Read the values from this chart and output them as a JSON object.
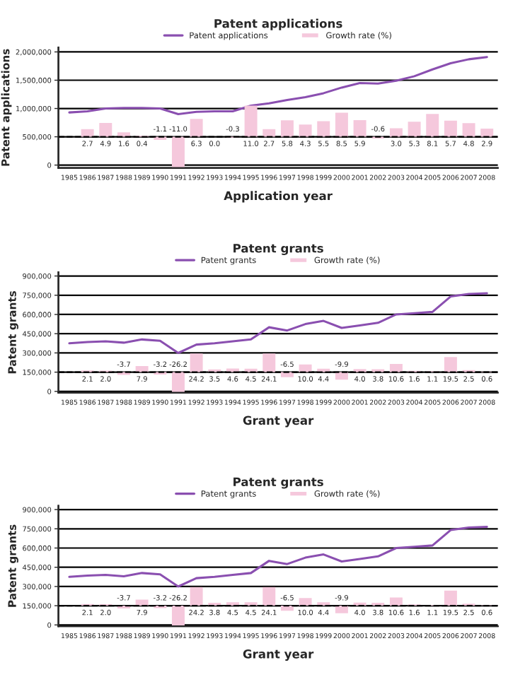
{
  "chart_data": [
    {
      "type": "line",
      "title": "Patent applications",
      "xlabel": "Application year",
      "ylabel": "Patent applications",
      "categories": [
        "1985",
        "1986",
        "1987",
        "1988",
        "1989",
        "1990",
        "1991",
        "1992",
        "1993",
        "1994",
        "1995",
        "1996",
        "1997",
        "1998",
        "1999",
        "2000",
        "2001",
        "2002",
        "2003",
        "2004",
        "2005",
        "2006",
        "2007",
        "2008"
      ],
      "series": [
        {
          "name": "Patent applications",
          "color": "#8a4fb0",
          "values": [
            930000,
            950000,
            1000000,
            1010000,
            1010000,
            1000000,
            900000,
            940000,
            950000,
            950000,
            1050000,
            1090000,
            1150000,
            1200000,
            1270000,
            1370000,
            1450000,
            1440000,
            1490000,
            1570000,
            1690000,
            1800000,
            1870000,
            1910000
          ]
        },
        {
          "name": "Growth rate (%)",
          "type": "bar",
          "axis": "y2",
          "color": "#f5c8dc",
          "values": [
            null,
            2.7,
            4.9,
            1.6,
            0.4,
            -1.1,
            -11.0,
            6.3,
            0.0,
            -0.3,
            11.0,
            2.7,
            5.8,
            4.3,
            5.5,
            8.5,
            5.9,
            -0.6,
            3.0,
            5.3,
            8.1,
            5.7,
            4.8,
            2.9
          ],
          "value_labels": [
            null,
            "2.7",
            "4.9",
            "1.6",
            "0.4",
            "-1.1",
            "-11.0",
            "6.3",
            "0.0",
            "-0.3",
            "11.0",
            "2.7",
            "5.8",
            "4.3",
            "5.5",
            "8.5",
            "5.9",
            "-0.6",
            "3.0",
            "5.3",
            "8.1",
            "5.7",
            "4.8",
            "2.9"
          ]
        }
      ],
      "ylim": [
        -50000,
        2080000
      ],
      "yticks": [
        {
          "value": 0,
          "label": "0"
        },
        {
          "value": 500000,
          "label": "500,000"
        },
        {
          "value": 1000000,
          "label": "1,000,000"
        },
        {
          "value": 1500000,
          "label": "1,500,000"
        },
        {
          "value": 2000000,
          "label": "2,000,000"
        }
      ],
      "y2lim": [
        -11,
        31.6
      ],
      "ref_lines": [
        {
          "axis": "y2",
          "value": 0,
          "line_style": "dashed",
          "color": "#000000"
        }
      ],
      "grid": "y",
      "legend": "top"
    },
    {
      "type": "line",
      "title": "Patent grants",
      "xlabel": "Grant year",
      "ylabel": "Patent grants",
      "categories": [
        "1985",
        "1986",
        "1987",
        "1988",
        "1989",
        "1990",
        "1991",
        "1992",
        "1993",
        "1994",
        "1995",
        "1996",
        "1997",
        "1998",
        "1999",
        "2000",
        "2001",
        "2002",
        "2003",
        "2004",
        "2005",
        "2006",
        "2007",
        "2008"
      ],
      "series": [
        {
          "name": "Patent grants",
          "color": "#8a4fb0",
          "values": [
            375000,
            385000,
            390000,
            380000,
            405000,
            395000,
            300000,
            365000,
            375000,
            390000,
            405000,
            500000,
            475000,
            525000,
            550000,
            495000,
            515000,
            535000,
            600000,
            610000,
            620000,
            740000,
            760000,
            765000
          ]
        },
        {
          "name": "Growth rate (%)",
          "type": "bar",
          "axis": "y2",
          "color": "#f5c8dc",
          "values": [
            null,
            2.1,
            2.0,
            -3.7,
            7.9,
            -3.2,
            -26.2,
            24.2,
            3.5,
            4.6,
            4.5,
            24.1,
            -6.5,
            10.0,
            4.4,
            -9.9,
            4.0,
            3.8,
            10.6,
            1.6,
            1.1,
            19.5,
            2.5,
            0.6
          ],
          "value_labels": [
            null,
            "2.1",
            "2.0",
            "-3.7",
            "7.9",
            "-3.2",
            "-26.2",
            "24.2",
            "3.5",
            "4.6",
            "4.5",
            "24.1",
            "-6.5",
            "10.0",
            "4.4",
            "-9.9",
            "4.0",
            "3.8",
            "10.6",
            "1.6",
            "1.1",
            "19.5",
            "2.5",
            "0.6"
          ]
        }
      ],
      "ylim": [
        -10000,
        930000
      ],
      "yticks": [
        {
          "value": 0,
          "label": "0"
        },
        {
          "value": 150000,
          "label": "150,000"
        },
        {
          "value": 300000,
          "label": "300,000"
        },
        {
          "value": 450000,
          "label": "450,000"
        },
        {
          "value": 600000,
          "label": "600,000"
        },
        {
          "value": 750000,
          "label": "750,000"
        },
        {
          "value": 900000,
          "label": "900,000"
        }
      ],
      "y2lim": [
        -26.7,
        130
      ],
      "ref_lines": [
        {
          "axis": "y2",
          "value": 0,
          "line_style": "dashed",
          "color": "#000000"
        }
      ],
      "grid": "y",
      "legend": "top"
    },
    {
      "type": "line",
      "title": "Patent grants",
      "xlabel": "Grant year",
      "ylabel": "Patent grants",
      "categories": [
        "1985",
        "1986",
        "1987",
        "1988",
        "1989",
        "1990",
        "1991",
        "1992",
        "1993",
        "1994",
        "1995",
        "1996",
        "1997",
        "1998",
        "1999",
        "2000",
        "2001",
        "2002",
        "2003",
        "2004",
        "2005",
        "2006",
        "2007",
        "2008"
      ],
      "series": [
        {
          "name": "Patent grants",
          "color": "#8a4fb0",
          "values": [
            375000,
            385000,
            390000,
            380000,
            405000,
            395000,
            300000,
            365000,
            375000,
            390000,
            405000,
            500000,
            475000,
            525000,
            550000,
            495000,
            515000,
            535000,
            600000,
            610000,
            620000,
            740000,
            760000,
            765000
          ]
        },
        {
          "name": "Growth rate (%)",
          "type": "bar",
          "axis": "y2",
          "color": "#f5c8dc",
          "values": [
            null,
            2.1,
            2.0,
            -3.7,
            7.9,
            -3.2,
            -26.2,
            24.2,
            3.8,
            4.5,
            4.5,
            24.1,
            -6.5,
            10.0,
            4.4,
            -9.9,
            4.0,
            3.8,
            10.6,
            1.6,
            1.1,
            19.5,
            2.5,
            0.6
          ],
          "value_labels": [
            null,
            "2.1",
            "2.0",
            "-3.7",
            "7.9",
            "-3.2",
            "-26.2",
            "24.2",
            "3.8",
            "4.5",
            "4.5",
            "24.1",
            "-6.5",
            "10.0",
            "4.4",
            "-9.9",
            "4.0",
            "3.8",
            "10.6",
            "1.6",
            "1.1",
            "19.5",
            "2.5",
            "0.6"
          ]
        }
      ],
      "ylim": [
        -10000,
        930000
      ],
      "yticks": [
        {
          "value": 0,
          "label": "0"
        },
        {
          "value": 150000,
          "label": "150,000"
        },
        {
          "value": 300000,
          "label": "300,000"
        },
        {
          "value": 450000,
          "label": "450,000"
        },
        {
          "value": 600000,
          "label": "600,000"
        },
        {
          "value": 750000,
          "label": "750,000"
        },
        {
          "value": 900000,
          "label": "900,000"
        }
      ],
      "y2lim": [
        -26.7,
        130
      ],
      "ref_lines": [
        {
          "axis": "y2",
          "value": 0,
          "line_style": "dashed",
          "color": "#000000"
        }
      ],
      "grid": "y",
      "legend": "top"
    }
  ]
}
